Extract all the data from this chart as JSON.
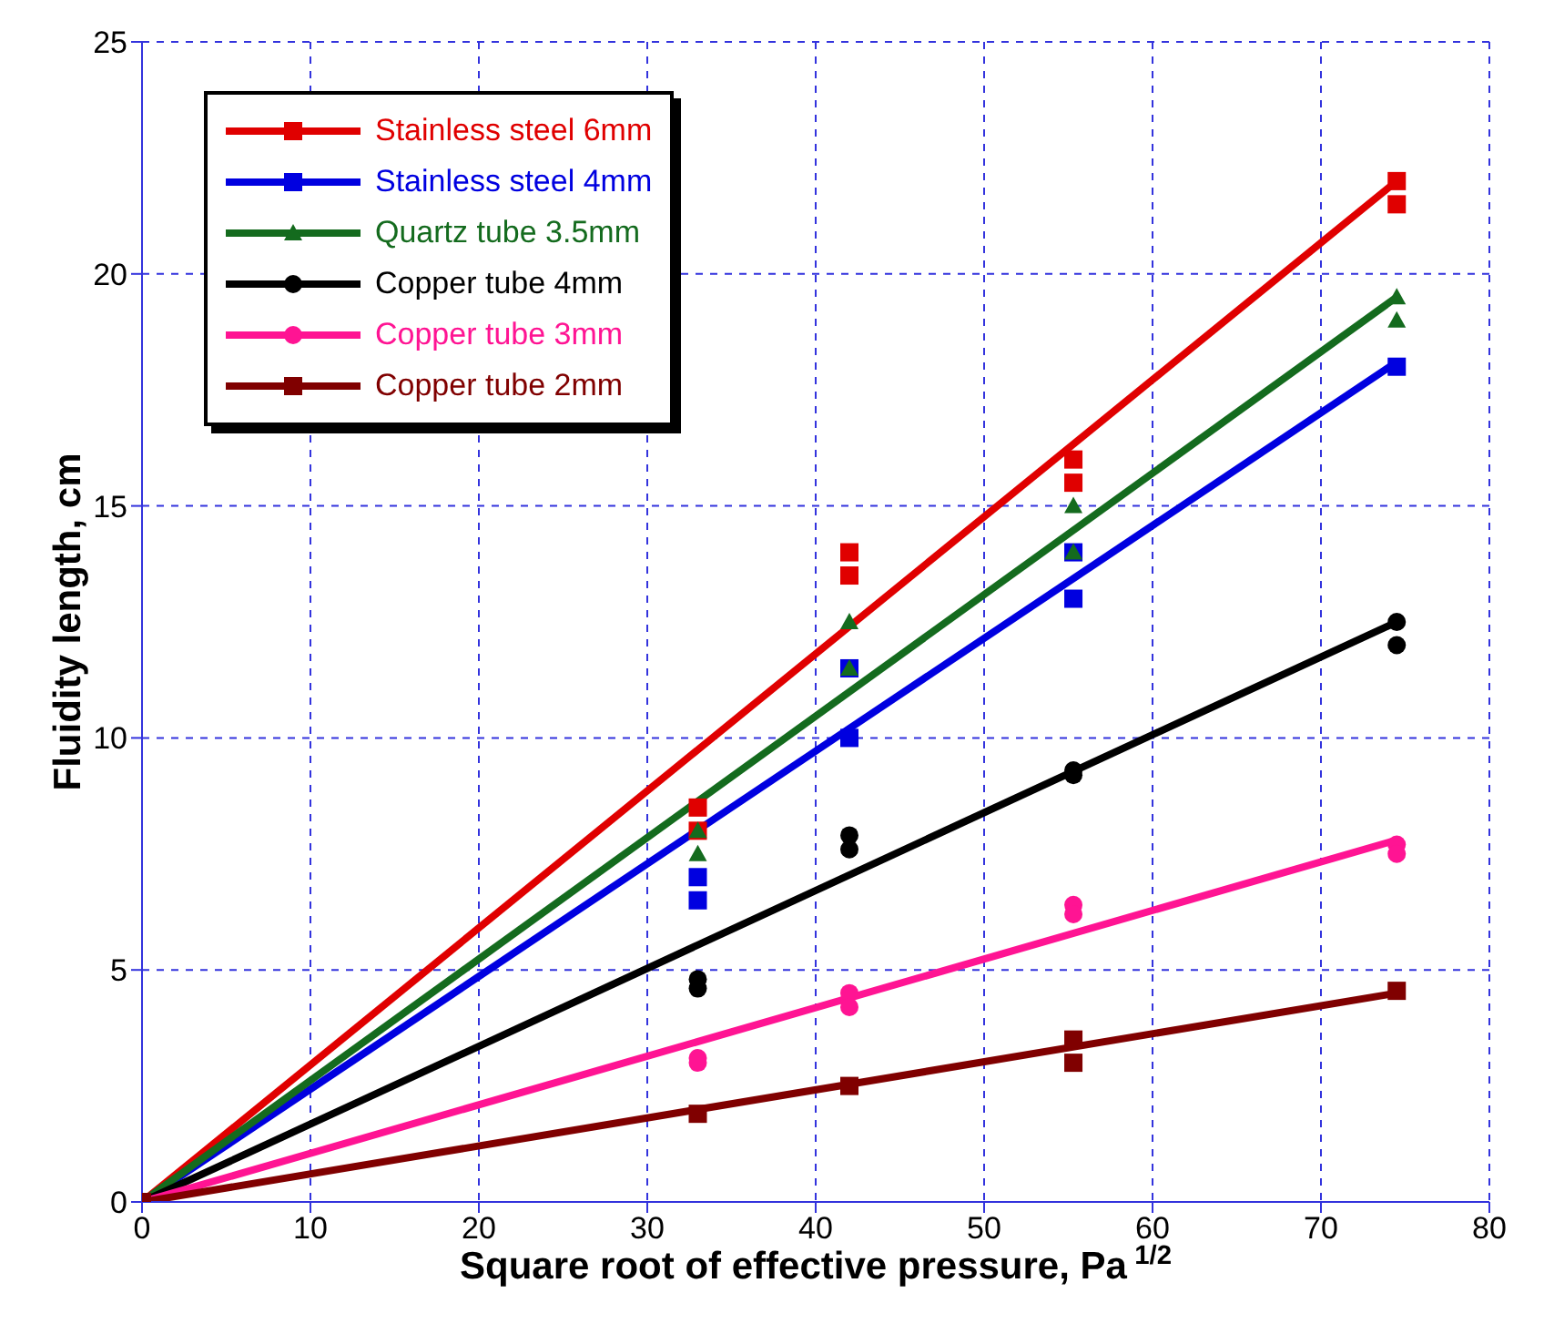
{
  "chart_data": {
    "type": "scatter",
    "xlabel": "Square root of effective pressure, Pa$^{1/2}$",
    "ylabel": "Fluidity length, cm",
    "xlim": [
      0,
      80
    ],
    "xticks": [
      0,
      10,
      20,
      30,
      40,
      50,
      60,
      70,
      80
    ],
    "ylim": [
      0,
      25
    ],
    "yticks": [
      0,
      5,
      10,
      15,
      20,
      25
    ],
    "grid": true,
    "legend": "top left",
    "series": [
      {
        "name": "Stainless steel 6mm",
        "color": "#e00000",
        "marker": "square",
        "x": [
          33,
          33,
          42,
          42,
          55.3,
          55.3,
          74.5,
          74.5
        ],
        "values": [
          8.5,
          8.0,
          14.0,
          13.5,
          16.0,
          15.5,
          22.0,
          21.5
        ]
      },
      {
        "name": "Stainless steel 4mm",
        "color": "#0000e0",
        "marker": "square",
        "x": [
          33,
          33,
          42,
          42,
          55.3,
          55.3,
          74.5
        ],
        "values": [
          7.0,
          6.5,
          11.5,
          10.0,
          14.0,
          13.0,
          18.0
        ]
      },
      {
        "name": "Quartz tube 3.5mm",
        "color": "#146b1e",
        "marker": "triangle",
        "x": [
          33,
          33,
          42,
          42,
          55.3,
          55.3,
          74.5,
          74.5
        ],
        "values": [
          8.0,
          7.5,
          12.5,
          11.5,
          15.0,
          14.0,
          19.5,
          19.0
        ]
      },
      {
        "name": "Copper tube 4mm",
        "color": "#000000",
        "marker": "circle",
        "x": [
          33,
          33,
          42,
          42,
          55.3,
          55.3,
          74.5,
          74.5
        ],
        "values": [
          4.8,
          4.6,
          7.9,
          7.6,
          9.3,
          9.2,
          12.5,
          12.0
        ]
      },
      {
        "name": "Copper tube 3mm",
        "color": "#ff1493",
        "marker": "circle",
        "x": [
          33,
          33,
          42,
          42,
          55.3,
          55.3,
          74.5,
          74.5
        ],
        "values": [
          3.1,
          3.0,
          4.5,
          4.2,
          6.4,
          6.2,
          7.7,
          7.5
        ]
      },
      {
        "name": "Copper tube 2mm",
        "color": "#800000",
        "marker": "square",
        "x": [
          0,
          33,
          42,
          55.3,
          55.3,
          74.5
        ],
        "values": [
          0,
          1.9,
          2.5,
          3.5,
          3.0,
          4.55
        ]
      },
      {
        "type": "line",
        "color": "#e00000",
        "marker": "none",
        "x": [
          0,
          74.5
        ],
        "values": [
          0,
          22.0
        ]
      },
      {
        "type": "line",
        "color": "#0000e0",
        "marker": "none",
        "x": [
          0,
          74.5
        ],
        "values": [
          0,
          18.1
        ]
      },
      {
        "type": "line",
        "color": "#146b1e",
        "marker": "none",
        "x": [
          0,
          74.5
        ],
        "values": [
          0,
          19.5
        ]
      },
      {
        "type": "line",
        "color": "#000000",
        "marker": "none",
        "x": [
          0,
          74.5
        ],
        "values": [
          0,
          12.5
        ]
      },
      {
        "type": "line",
        "color": "#ff1493",
        "marker": "none",
        "x": [
          0,
          74.5
        ],
        "values": [
          0,
          7.8
        ]
      },
      {
        "type": "line",
        "color": "#800000",
        "marker": "none",
        "x": [
          0,
          74.5
        ],
        "values": [
          0,
          4.5
        ]
      }
    ]
  }
}
